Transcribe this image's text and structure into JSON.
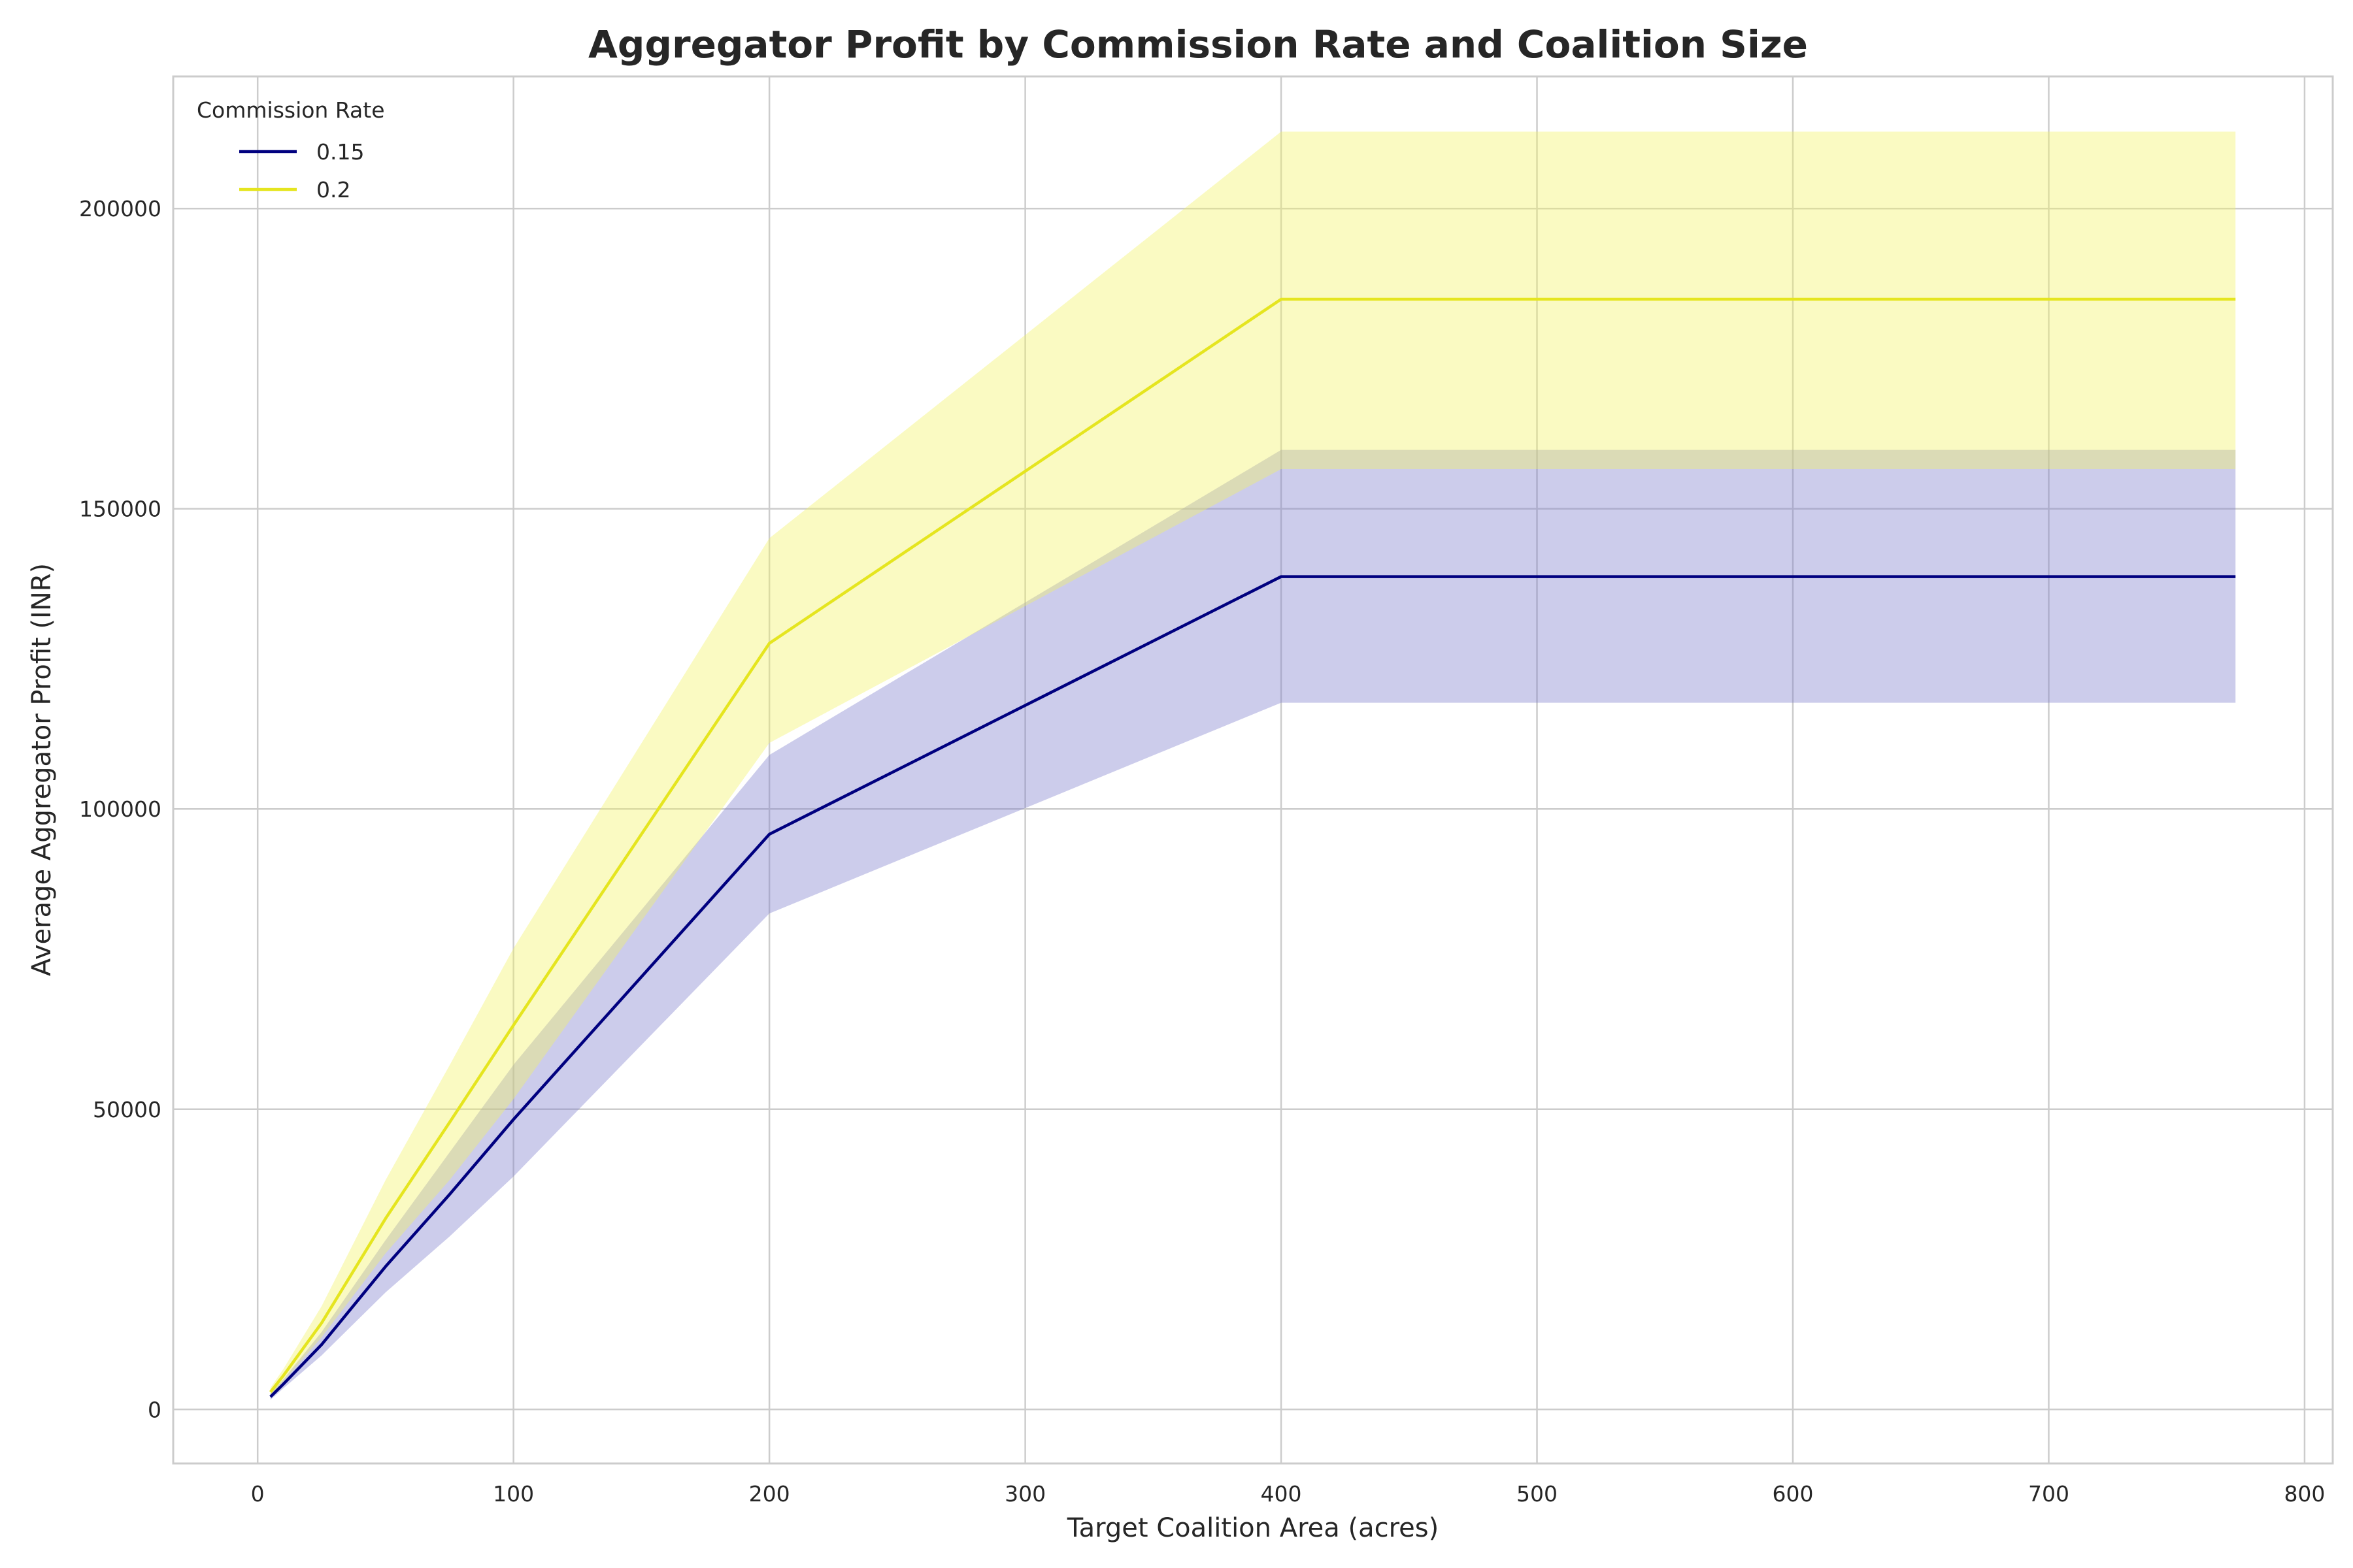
{
  "chart_data": {
    "type": "line",
    "title": "Aggregator Profit by Commission Rate and Coalition Size",
    "xlabel": "Target Coalition Area (acres)",
    "ylabel": "Average Aggregator Profit (INR)",
    "xlim": [
      -33,
      811
    ],
    "ylim": [
      -9000,
      222000
    ],
    "xticks": [
      0,
      100,
      200,
      300,
      400,
      500,
      600,
      700,
      800
    ],
    "yticks": [
      0,
      50000,
      100000,
      150000,
      200000
    ],
    "grid": true,
    "legend": {
      "title": "Commission Rate",
      "placement": "top-left"
    },
    "x": [
      5,
      10,
      25,
      50,
      75,
      100,
      200,
      400,
      773
    ],
    "series": [
      {
        "name": "0.15",
        "color": "#00007f",
        "band_color": "#7f7fcc",
        "values": [
          2100,
          4200,
          10800,
          23800,
          35800,
          48300,
          95800,
          138700,
          138700
        ],
        "lower": [
          1600,
          3500,
          9000,
          19500,
          28800,
          38800,
          82600,
          117700,
          117700
        ],
        "upper": [
          2700,
          5000,
          12900,
          28200,
          42800,
          57400,
          109000,
          159800,
          159800
        ]
      },
      {
        "name": "0.2",
        "color": "#e5e51f",
        "band_color": "#f2f266",
        "values": [
          2900,
          5600,
          14400,
          31800,
          47800,
          64000,
          127600,
          184900,
          184900
        ],
        "lower": [
          2200,
          4700,
          12000,
          26000,
          38200,
          51700,
          111000,
          156600,
          156600
        ],
        "upper": [
          3600,
          6700,
          17200,
          38200,
          57300,
          76800,
          145100,
          212800,
          212800
        ]
      }
    ]
  }
}
